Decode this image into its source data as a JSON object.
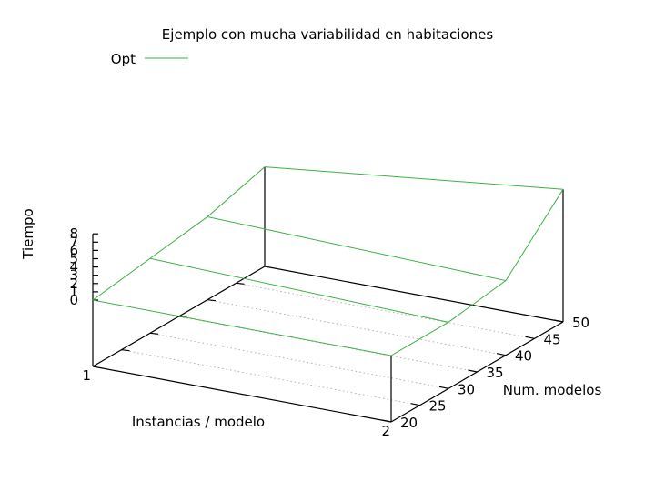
{
  "chart_data": {
    "type": "surface3d",
    "title": "Ejemplo con mucha variabilidad en habitaciones",
    "xlabel": "Instancias / modelo",
    "ylabel": "Num. modelos",
    "zlabel": "Tiempo",
    "x_ticks": [
      "1",
      "2"
    ],
    "y_ticks": [
      "20",
      "25",
      "30",
      "35",
      "40",
      "45",
      "50"
    ],
    "z_ticks": [
      "0",
      "1",
      "2",
      "3",
      "4",
      "5",
      "6",
      "7",
      "8"
    ],
    "xlim": [
      1,
      2
    ],
    "ylim": [
      20,
      50
    ],
    "zlim": [
      0,
      8
    ],
    "grid": true,
    "legend_position": "top-left",
    "series": [
      {
        "name": "Opt",
        "color": "#3cb043",
        "y": [
          20,
          30,
          40,
          50
        ],
        "z_at_x1": [
          0,
          1,
          2,
          4
        ],
        "z_at_x2": [
          0,
          0,
          1,
          8
        ]
      }
    ]
  }
}
